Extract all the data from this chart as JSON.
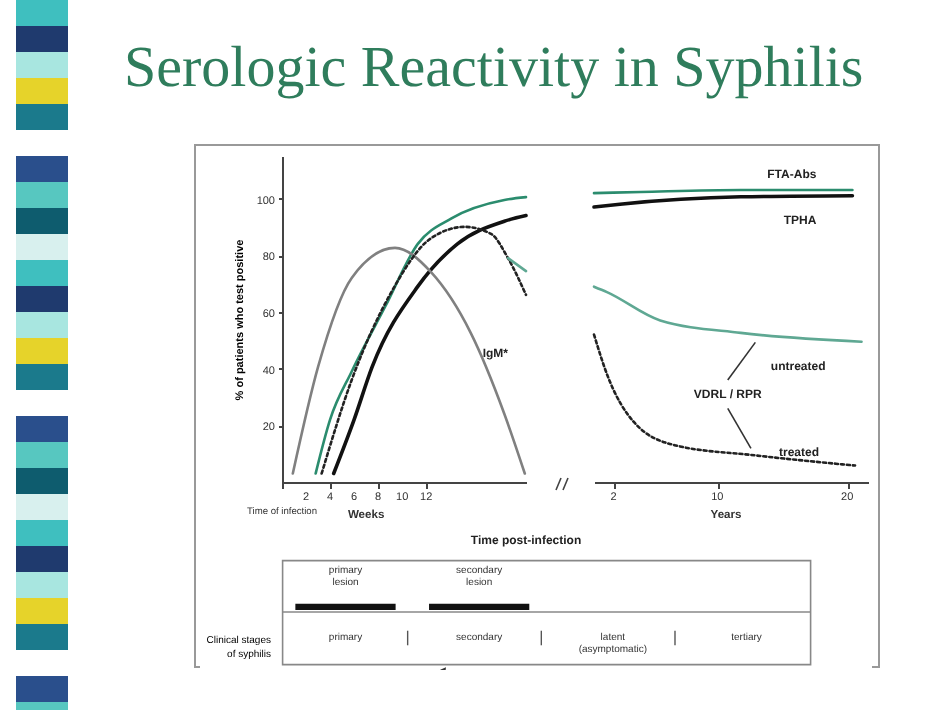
{
  "chart_data": [
    {
      "type": "line",
      "title": "Serologic Reactivity in Syphilis",
      "ylabel": "% of patients who test positive",
      "xlabel": "Time post-infection",
      "xlim": [
        0,
        20.3
      ],
      "ylim": [
        0,
        115
      ],
      "yticks": [
        20,
        40,
        60,
        80,
        100
      ],
      "xticks": [
        {
          "value": 0,
          "label": null
        },
        2,
        4,
        6,
        8,
        10,
        12
      ],
      "marker": "none",
      "annotations": [
        "Weeks",
        "Time of infection"
      ],
      "series": [
        {
          "color": "#2b8c6e",
          "line_style": "solid",
          "x": [
            2.8,
            4,
            5.8,
            8.6,
            11.3,
            14.1,
            18.5,
            20.3
          ],
          "values": [
            3,
            22,
            39,
            62,
            84,
            93,
            99.5,
            100.5
          ]
        },
        {
          "color": "#111111",
          "line_style": "solid",
          "x": [
            4.3,
            6,
            7.5,
            11.3,
            14.6,
            18.5,
            20.3
          ],
          "values": [
            3,
            22,
            40.6,
            69,
            84,
            92,
            94
          ]
        },
        {
          "name": "IgM*",
          "color": "#808080",
          "line_style": "solid",
          "x": [
            0.9,
            3,
            5.8,
            9.4,
            12.4,
            15.7,
            18.5,
            20.2
          ],
          "values": [
            3,
            40.6,
            72,
            82.6,
            74,
            52.6,
            24,
            3
          ]
        },
        {
          "color": "#222222",
          "line_style": "dotted",
          "x": [
            3.3,
            5.8,
            9.1,
            12.4,
            15.2,
            17.4,
            18.8,
            20.3
          ],
          "values": [
            3,
            36,
            67,
            86,
            90,
            87.5,
            79,
            66
          ]
        },
        {
          "color": "#5fa893",
          "line_style": "solid",
          "x": [
            18.8,
            20.3
          ],
          "values": [
            79,
            74.4
          ]
        }
      ]
    },
    {
      "type": "line",
      "xlim": [
        0.5,
        21.6
      ],
      "ylim": [
        0,
        115
      ],
      "xticks": [
        2,
        10,
        20
      ],
      "tick_labels": "x",
      "marker": "none",
      "annotations": [
        "Years",
        {
          "text": "VDRL / RPR",
          "x": 11.8,
          "y": 52.6
        }
      ],
      "series": [
        {
          "name": "FTA-Abs",
          "color": "#2b8c6e",
          "line_style": "solid",
          "x": [
            0.5,
            4.1,
            11.8,
            20.4
          ],
          "values": [
            101.9,
            102.3,
            103,
            103
          ]
        },
        {
          "name": "TPHA",
          "color": "#111111",
          "line_style": "solid",
          "x": [
            0.5,
            2.5,
            11.8,
            20.4
          ],
          "values": [
            97,
            98,
            100.6,
            101
          ]
        },
        {
          "name": "untreated",
          "color": "#5fa893",
          "line_style": "solid",
          "x": [
            0.5,
            1.5,
            5.6,
            11.8,
            21.1
          ],
          "values": [
            68.9,
            67,
            57,
            52.6,
            49.5
          ]
        },
        {
          "name": "treated",
          "color": "#222222",
          "line_style": "dotted",
          "x": [
            0.5,
            1.5,
            3.6,
            6.7,
            12.9,
            20.6
          ],
          "values": [
            52,
            38,
            21,
            13,
            9.4,
            5.8
          ]
        }
      ]
    },
    {
      "type": "other",
      "categories": [
        "primary",
        "secondary",
        "latent (asymptomatic)",
        "tertiary"
      ],
      "annotations": [
        "primary lesion",
        "secondary lesion"
      ],
      "ylabel": "Clinical stages of syphilis"
    }
  ]
}
